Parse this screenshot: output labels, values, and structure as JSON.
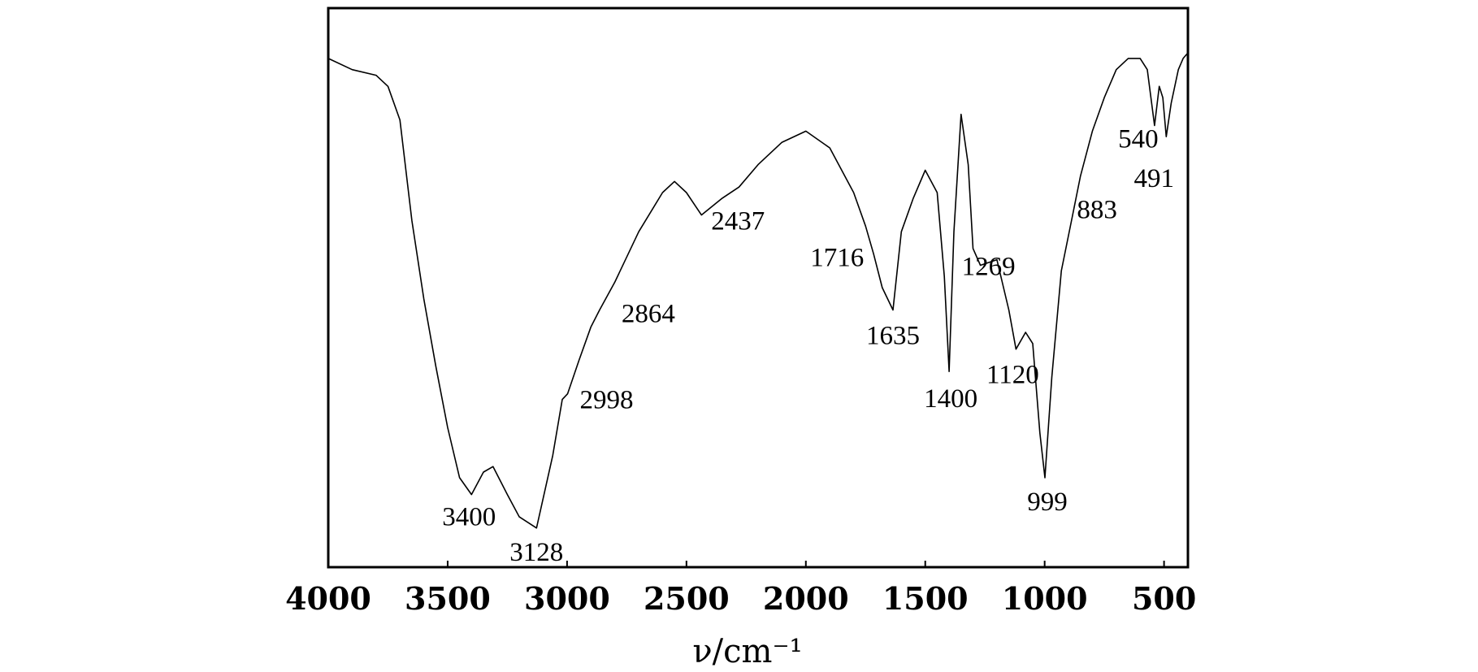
{
  "chart_data": {
    "type": "line",
    "xlabel": "ν/cm⁻¹",
    "xlim": [
      4000,
      400
    ],
    "x_reversed": true,
    "y_axis_visible": false,
    "xticks": [
      4000,
      3500,
      3000,
      2500,
      2000,
      1500,
      1000,
      500
    ],
    "xtick_labels": [
      "4000",
      "3500",
      "3000",
      "2500",
      "2000",
      "1500",
      "1000",
      "500"
    ],
    "ylim": [
      0,
      100
    ],
    "grid": false,
    "series": [
      {
        "points": [
          [
            4000,
            91
          ],
          [
            3900,
            89
          ],
          [
            3800,
            88
          ],
          [
            3750,
            86
          ],
          [
            3700,
            80
          ],
          [
            3650,
            62
          ],
          [
            3600,
            48
          ],
          [
            3550,
            36
          ],
          [
            3500,
            25
          ],
          [
            3450,
            16
          ],
          [
            3400,
            13
          ],
          [
            3350,
            17
          ],
          [
            3310,
            18
          ],
          [
            3250,
            13
          ],
          [
            3200,
            9
          ],
          [
            3128,
            7
          ],
          [
            3060,
            20
          ],
          [
            3020,
            30
          ],
          [
            2998,
            31
          ],
          [
            2950,
            37
          ],
          [
            2900,
            43
          ],
          [
            2864,
            46
          ],
          [
            2800,
            51
          ],
          [
            2700,
            60
          ],
          [
            2600,
            67
          ],
          [
            2550,
            69
          ],
          [
            2500,
            67
          ],
          [
            2437,
            63
          ],
          [
            2350,
            66
          ],
          [
            2280,
            68
          ],
          [
            2200,
            72
          ],
          [
            2100,
            76
          ],
          [
            2000,
            78
          ],
          [
            1900,
            75
          ],
          [
            1800,
            67
          ],
          [
            1750,
            61
          ],
          [
            1716,
            56
          ],
          [
            1680,
            50
          ],
          [
            1635,
            46
          ],
          [
            1600,
            60
          ],
          [
            1550,
            66
          ],
          [
            1500,
            71
          ],
          [
            1450,
            67
          ],
          [
            1420,
            52
          ],
          [
            1400,
            35
          ],
          [
            1380,
            60
          ],
          [
            1350,
            81
          ],
          [
            1320,
            72
          ],
          [
            1300,
            57
          ],
          [
            1269,
            54
          ],
          [
            1200,
            55
          ],
          [
            1150,
            46
          ],
          [
            1120,
            39
          ],
          [
            1080,
            42
          ],
          [
            1050,
            40
          ],
          [
            1020,
            24
          ],
          [
            999,
            16
          ],
          [
            970,
            34
          ],
          [
            930,
            53
          ],
          [
            883,
            63
          ],
          [
            850,
            70
          ],
          [
            800,
            78
          ],
          [
            750,
            84
          ],
          [
            700,
            89
          ],
          [
            650,
            91
          ],
          [
            600,
            91
          ],
          [
            570,
            89
          ],
          [
            540,
            79
          ],
          [
            520,
            86
          ],
          [
            505,
            84
          ],
          [
            491,
            77
          ],
          [
            470,
            83
          ],
          [
            440,
            89
          ],
          [
            420,
            91
          ],
          [
            400,
            92
          ]
        ]
      }
    ],
    "annotations": [
      {
        "text": "3400",
        "x": 3400,
        "y": 13
      },
      {
        "text": "3128",
        "x": 3128,
        "y": 7
      },
      {
        "text": "2998",
        "x": 2998,
        "y": 31
      },
      {
        "text": "2864",
        "x": 2864,
        "y": 46
      },
      {
        "text": "2437",
        "x": 2437,
        "y": 63
      },
      {
        "text": "1716",
        "x": 1716,
        "y": 56
      },
      {
        "text": "1635",
        "x": 1635,
        "y": 46
      },
      {
        "text": "1400",
        "x": 1400,
        "y": 35
      },
      {
        "text": "1269",
        "x": 1269,
        "y": 54
      },
      {
        "text": "1120",
        "x": 1120,
        "y": 39
      },
      {
        "text": "999",
        "x": 999,
        "y": 16
      },
      {
        "text": "883",
        "x": 883,
        "y": 63
      },
      {
        "text": "540",
        "x": 540,
        "y": 79
      },
      {
        "text": "491",
        "x": 491,
        "y": 77
      }
    ]
  }
}
